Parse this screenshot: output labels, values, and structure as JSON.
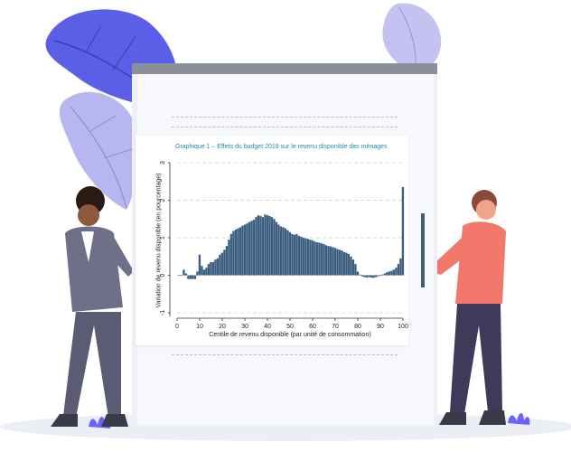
{
  "chart_data": {
    "type": "bar",
    "title": "Graphique 1 – Effets du budget 2019 sur le revenu disponible des ménages",
    "xlabel": "Centile de revenu disponible (par unité de consommation)",
    "ylabel": "Variation de revenu disponible (en pourcentage)",
    "xlim": [
      0,
      100
    ],
    "ylim": [
      -1,
      3
    ],
    "x_ticks": [
      "0",
      "10",
      "20",
      "30",
      "40",
      "50",
      "60",
      "70",
      "80",
      "90",
      "100"
    ],
    "y_ticks": [
      "-1",
      "0",
      "1",
      "2",
      "3"
    ],
    "grid": "horizontal dashed",
    "bar_color": "#3c5f7f",
    "x": [
      1,
      2,
      3,
      4,
      5,
      6,
      7,
      8,
      9,
      10,
      11,
      12,
      13,
      14,
      15,
      16,
      17,
      18,
      19,
      20,
      21,
      22,
      23,
      24,
      25,
      26,
      27,
      28,
      29,
      30,
      31,
      32,
      33,
      34,
      35,
      36,
      37,
      38,
      39,
      40,
      41,
      42,
      43,
      44,
      45,
      46,
      47,
      48,
      49,
      50,
      51,
      52,
      53,
      54,
      55,
      56,
      57,
      58,
      59,
      60,
      61,
      62,
      63,
      64,
      65,
      66,
      67,
      68,
      69,
      70,
      71,
      72,
      73,
      74,
      75,
      76,
      77,
      78,
      79,
      80,
      81,
      82,
      83,
      84,
      85,
      86,
      87,
      88,
      89,
      90,
      91,
      92,
      93,
      94,
      95,
      96,
      97,
      98,
      99,
      100
    ],
    "values": [
      0.0,
      0.0,
      0.15,
      0.05,
      -0.1,
      -0.1,
      -0.1,
      -0.1,
      0.1,
      0.55,
      0.25,
      0.15,
      0.2,
      0.3,
      0.35,
      0.35,
      0.42,
      0.45,
      0.55,
      0.6,
      0.68,
      0.78,
      0.95,
      1.1,
      1.18,
      1.22,
      1.25,
      1.28,
      1.32,
      1.35,
      1.38,
      1.42,
      1.45,
      1.48,
      1.55,
      1.6,
      1.58,
      1.55,
      1.62,
      1.6,
      1.58,
      1.55,
      1.5,
      1.42,
      1.35,
      1.3,
      1.28,
      1.25,
      1.2,
      1.15,
      1.1,
      1.08,
      1.1,
      1.05,
      1.03,
      1.0,
      0.98,
      0.97,
      0.95,
      0.93,
      0.9,
      0.88,
      0.87,
      0.85,
      0.83,
      0.8,
      0.78,
      0.77,
      0.75,
      0.73,
      0.7,
      0.68,
      0.66,
      0.62,
      0.6,
      0.57,
      0.5,
      0.42,
      0.3,
      0.1,
      0.02,
      -0.03,
      -0.05,
      -0.06,
      -0.05,
      -0.06,
      -0.07,
      -0.05,
      -0.03,
      0.0,
      0.02,
      0.05,
      0.08,
      0.1,
      0.12,
      0.15,
      0.2,
      0.3,
      0.45,
      2.35
    ]
  },
  "colors": {
    "accent": "#1e8ea8",
    "bars": "#3c5f7f",
    "leaf_purple": "#5b5fe8",
    "leaf_light": "#b8b6ee",
    "shirt_red": "#f2786c",
    "suit_gray": "#6f6f88"
  },
  "icons": [
    "leaf-decoration",
    "person-left-illustration",
    "person-right-illustration",
    "grass-tuft-icon"
  ]
}
